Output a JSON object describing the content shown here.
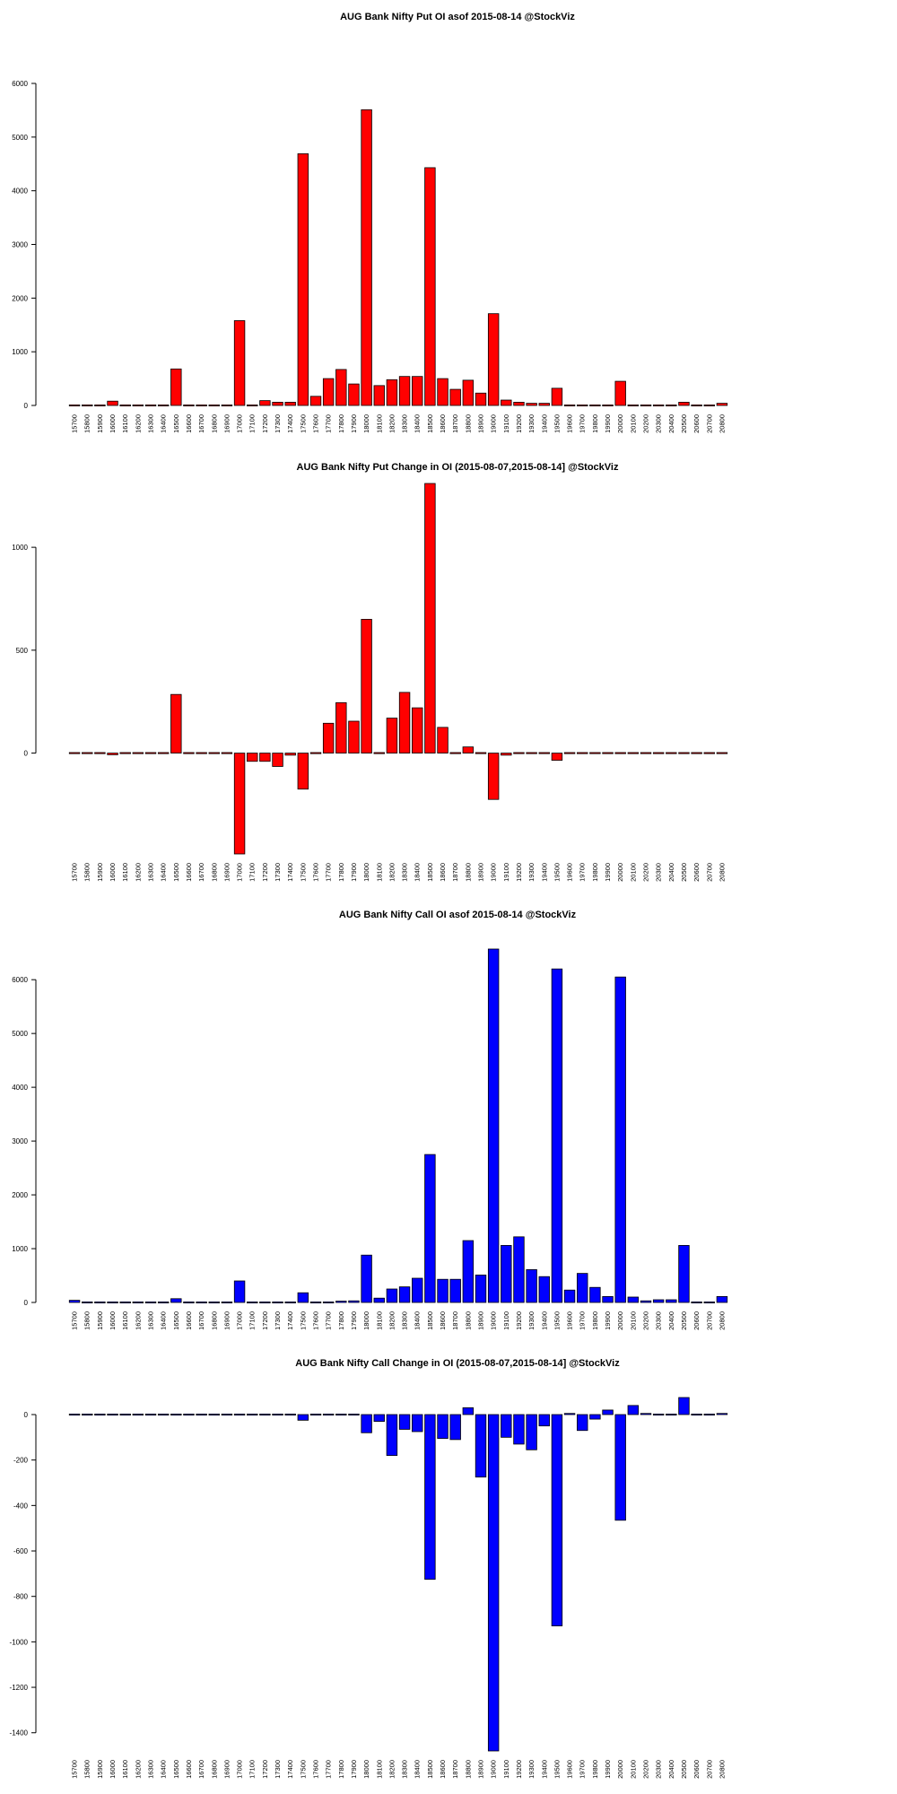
{
  "chart_data": [
    {
      "type": "bar",
      "title": "AUG Bank Nifty Put OI asof 2015-08-14 @StockViz",
      "color": "#ff0000",
      "categories": [
        "15700",
        "15800",
        "15900",
        "16000",
        "16100",
        "16200",
        "16300",
        "16400",
        "16500",
        "16600",
        "16700",
        "16800",
        "16900",
        "17000",
        "17100",
        "17200",
        "17300",
        "17400",
        "17500",
        "17600",
        "17700",
        "17800",
        "17900",
        "18000",
        "18100",
        "18200",
        "18300",
        "18400",
        "18500",
        "18600",
        "18700",
        "18800",
        "18900",
        "19000",
        "19100",
        "19200",
        "19300",
        "19400",
        "19500",
        "19600",
        "19700",
        "19800",
        "19900",
        "20000",
        "20100",
        "20200",
        "20300",
        "20400",
        "20500",
        "20600",
        "20700",
        "20800"
      ],
      "values": [
        5,
        5,
        5,
        80,
        5,
        5,
        5,
        5,
        680,
        5,
        5,
        15,
        20,
        1580,
        15,
        90,
        60,
        60,
        4690,
        170,
        500,
        670,
        400,
        5510,
        370,
        480,
        540,
        540,
        4430,
        500,
        300,
        470,
        230,
        1710,
        100,
        60,
        40,
        40,
        320,
        20,
        5,
        5,
        5,
        450,
        5,
        5,
        5,
        5,
        60,
        5,
        5,
        40
      ],
      "yticks": [
        0,
        1000,
        2000,
        3000,
        4000,
        5000,
        6000
      ],
      "ylim": [
        0,
        6000
      ]
    },
    {
      "type": "bar",
      "title": "AUG Bank Nifty Put Change in OI (2015-08-07,2015-08-14] @StockViz",
      "color": "#ff0000",
      "categories": [
        "15700",
        "15800",
        "15900",
        "16000",
        "16100",
        "16200",
        "16300",
        "16400",
        "16500",
        "16600",
        "16700",
        "16800",
        "16900",
        "17000",
        "17100",
        "17200",
        "17300",
        "17400",
        "17500",
        "17600",
        "17700",
        "17800",
        "17900",
        "18000",
        "18100",
        "18200",
        "18300",
        "18400",
        "18500",
        "18600",
        "18700",
        "18800",
        "18900",
        "19000",
        "19100",
        "19200",
        "19300",
        "19400",
        "19500",
        "19600",
        "19700",
        "19800",
        "19900",
        "20000",
        "20100",
        "20200",
        "20300",
        "20400",
        "20500",
        "20600",
        "20700",
        "20800"
      ],
      "values": [
        0,
        0,
        0,
        -8,
        0,
        0,
        0,
        0,
        285,
        0,
        0,
        0,
        0,
        -490,
        -40,
        -40,
        -65,
        -10,
        -175,
        0,
        145,
        245,
        155,
        650,
        5,
        170,
        295,
        220,
        1310,
        125,
        0,
        30,
        -5,
        -225,
        -10,
        0,
        0,
        0,
        -35,
        0,
        0,
        0,
        0,
        -5,
        0,
        0,
        0,
        0,
        0,
        0,
        0,
        0
      ],
      "yticks": [
        0,
        500,
        1000
      ],
      "ylim": [
        -490,
        1310
      ]
    },
    {
      "type": "bar",
      "title": "AUG Bank Nifty Call OI asof 2015-08-14 @StockViz",
      "color": "#0000ff",
      "categories": [
        "15700",
        "15800",
        "15900",
        "16000",
        "16100",
        "16200",
        "16300",
        "16400",
        "16500",
        "16600",
        "16700",
        "16800",
        "16900",
        "17000",
        "17100",
        "17200",
        "17300",
        "17400",
        "17500",
        "17600",
        "17700",
        "17800",
        "17900",
        "18000",
        "18100",
        "18200",
        "18300",
        "18400",
        "18500",
        "18600",
        "18700",
        "18800",
        "18900",
        "19000",
        "19100",
        "19200",
        "19300",
        "19400",
        "19500",
        "19600",
        "19700",
        "19800",
        "19900",
        "20000",
        "20100",
        "20200",
        "20300",
        "20400",
        "20500",
        "20600",
        "20700",
        "20800"
      ],
      "values": [
        40,
        5,
        5,
        15,
        5,
        5,
        5,
        5,
        70,
        5,
        5,
        5,
        5,
        400,
        5,
        5,
        5,
        5,
        180,
        5,
        15,
        25,
        30,
        880,
        80,
        250,
        290,
        450,
        2750,
        430,
        430,
        1150,
        510,
        6570,
        1060,
        1220,
        610,
        480,
        6200,
        230,
        540,
        280,
        110,
        6050,
        100,
        30,
        50,
        50,
        1060,
        5,
        5,
        110
      ],
      "yticks": [
        0,
        1000,
        2000,
        3000,
        4000,
        5000,
        6000
      ],
      "ylim": [
        0,
        6570
      ]
    },
    {
      "type": "bar",
      "title": "AUG Bank Nifty Call Change in OI (2015-08-07,2015-08-14] @StockViz",
      "color": "#0000ff",
      "categories": [
        "15700",
        "15800",
        "15900",
        "16000",
        "16100",
        "16200",
        "16300",
        "16400",
        "16500",
        "16600",
        "16700",
        "16800",
        "16900",
        "17000",
        "17100",
        "17200",
        "17300",
        "17400",
        "17500",
        "17600",
        "17700",
        "17800",
        "17900",
        "18000",
        "18100",
        "18200",
        "18300",
        "18400",
        "18500",
        "18600",
        "18700",
        "18800",
        "18900",
        "19000",
        "19100",
        "19200",
        "19300",
        "19400",
        "19500",
        "19600",
        "19700",
        "19800",
        "19900",
        "20000",
        "20100",
        "20200",
        "20300",
        "20400",
        "20500",
        "20600",
        "20700",
        "20800"
      ],
      "values": [
        0,
        0,
        0,
        0,
        0,
        0,
        0,
        0,
        0,
        0,
        0,
        0,
        0,
        0,
        0,
        0,
        0,
        0,
        -25,
        0,
        0,
        0,
        0,
        -80,
        -30,
        -180,
        -65,
        -75,
        -725,
        -105,
        -110,
        30,
        -275,
        -1480,
        -100,
        -130,
        -155,
        -50,
        -930,
        5,
        -70,
        -20,
        20,
        -465,
        40,
        5,
        0,
        0,
        75,
        0,
        0,
        5
      ],
      "yticks": [
        0,
        -200,
        -400,
        -600,
        -800,
        -1000,
        -1200,
        -1400
      ],
      "ylim": [
        -1480,
        75
      ]
    }
  ]
}
